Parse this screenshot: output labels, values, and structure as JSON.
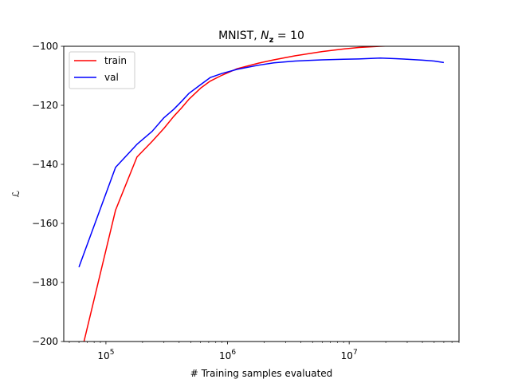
{
  "chart_data": {
    "type": "line",
    "title_prefix": "MNIST, ",
    "title_var": "N",
    "title_sub": "z",
    "title_suffix": " = 10",
    "xlabel": "# Training samples evaluated",
    "ylabel": "ℒ",
    "xscale": "log",
    "xlim": [
      45000,
      80000000
    ],
    "ylim": [
      -200,
      -100
    ],
    "yticks": [
      -200,
      -180,
      -160,
      -140,
      -120,
      -100
    ],
    "ytick_labels": [
      "−200",
      "−180",
      "−160",
      "−140",
      "−120",
      "−100"
    ],
    "xticks_major": [
      100000,
      1000000,
      10000000
    ],
    "xtick_base": "10",
    "xtick_exponents": [
      "5",
      "6",
      "7"
    ],
    "grid": false,
    "legend_position": "top-left",
    "series": [
      {
        "name": "train",
        "color": "#ff0000",
        "x": [
          66000,
          120000,
          180000,
          240000,
          300000,
          360000,
          420000,
          480000,
          600000,
          720000,
          900000,
          1200000,
          1800000,
          2400000,
          3600000,
          6000000,
          9000000,
          12000000,
          18000000,
          24000000,
          30000000
        ],
        "y": [
          -200,
          -155.5,
          -137.5,
          -132.2,
          -127.8,
          -123.8,
          -120.8,
          -118.0,
          -114.2,
          -111.8,
          -109.8,
          -107.6,
          -105.7,
          -104.6,
          -103.2,
          -101.8,
          -100.9,
          -100.4,
          -100.0,
          -99.8,
          -99.6
        ]
      },
      {
        "name": "val",
        "color": "#0000ff",
        "x": [
          60000,
          120000,
          180000,
          240000,
          300000,
          360000,
          420000,
          480000,
          600000,
          720000,
          900000,
          1200000,
          1800000,
          2400000,
          3600000,
          6000000,
          9000000,
          12000000,
          18000000,
          24000000,
          30000000,
          40000000,
          50000000,
          60000000
        ],
        "y": [
          -174.8,
          -141.0,
          -133.2,
          -128.8,
          -124.2,
          -121.4,
          -118.6,
          -116.0,
          -113.0,
          -110.6,
          -109.2,
          -107.8,
          -106.4,
          -105.6,
          -105.0,
          -104.6,
          -104.4,
          -104.3,
          -104.0,
          -104.2,
          -104.4,
          -104.7,
          -105.0,
          -105.5
        ]
      }
    ]
  }
}
